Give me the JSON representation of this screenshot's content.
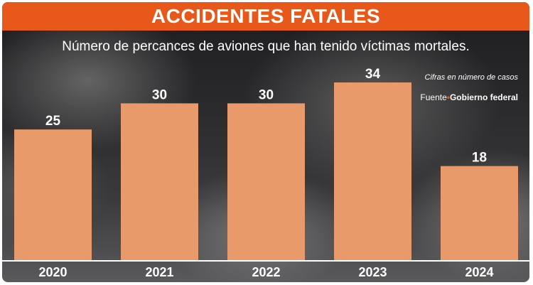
{
  "header": {
    "title": "ACCIDENTES FATALES",
    "subtitle": "Número de percances de aviones que han tenido víctimas mortales."
  },
  "note": "Cifras en número de casos",
  "source": {
    "prefix": "Fuente",
    "separator": "•",
    "name": "Gobierno federal"
  },
  "colors": {
    "title_bar": "#e9581b",
    "bar": "#e89a6a",
    "text": "#ffffff"
  },
  "chart_data": {
    "type": "bar",
    "categories": [
      "2020",
      "2021",
      "2022",
      "2023",
      "2024"
    ],
    "values": [
      25,
      30,
      30,
      34,
      18
    ],
    "title": "ACCIDENTES FATALES",
    "subtitle": "Número de percances de aviones que han tenido víctimas mortales.",
    "ylim": [
      0,
      42
    ],
    "grid": false,
    "data_labels": true
  }
}
